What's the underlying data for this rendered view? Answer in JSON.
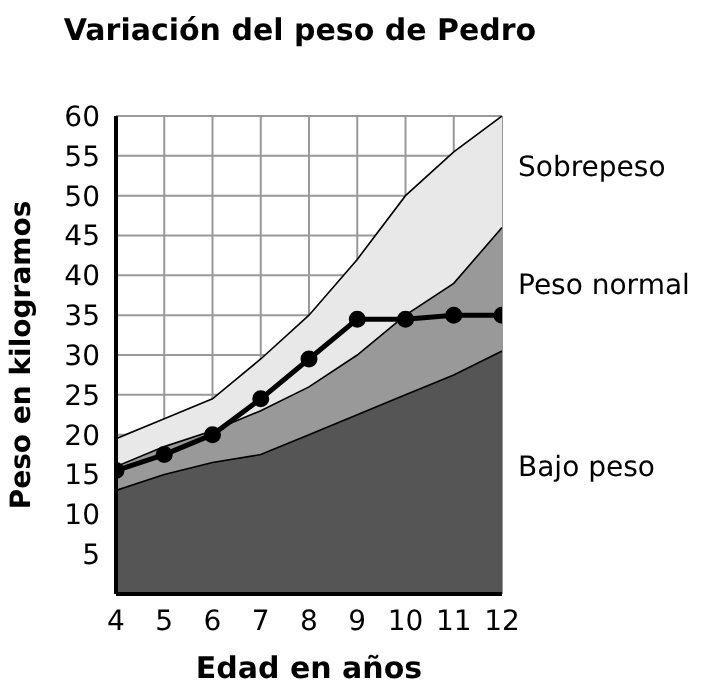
{
  "chart_data": {
    "type": "area",
    "title": "Variación del peso de Pedro",
    "xlabel": "Edad en años",
    "ylabel": "Peso en kilogramos",
    "x": [
      4,
      5,
      6,
      7,
      8,
      9,
      10,
      11,
      12
    ],
    "series": [
      {
        "name": "Sobrepeso",
        "color": "#e8e8e8",
        "values": [
          19.5,
          22,
          24.5,
          29.5,
          35,
          42,
          50,
          55.5,
          60
        ]
      },
      {
        "name": "Peso normal",
        "color": "#999999",
        "values": [
          16,
          18.5,
          20.5,
          23,
          26,
          30,
          35,
          39,
          46
        ]
      },
      {
        "name": "Bajo peso",
        "color": "#555555",
        "values": [
          13,
          15,
          16.5,
          17.5,
          20,
          22.5,
          25,
          27.5,
          30.5
        ]
      },
      {
        "type": "line",
        "marker": "circle",
        "color": "#000000",
        "values": [
          15.5,
          17.5,
          20,
          24.5,
          29.5,
          34.5,
          34.5,
          35,
          35
        ]
      }
    ],
    "xlim": [
      4,
      12
    ],
    "xticks": [
      4,
      5,
      6,
      7,
      8,
      9,
      10,
      11,
      12
    ],
    "ylim": [
      0,
      60
    ],
    "yticks": [
      5,
      10,
      15,
      20,
      25,
      30,
      35,
      40,
      45,
      50,
      55,
      60
    ],
    "grid": true,
    "legend": false
  }
}
